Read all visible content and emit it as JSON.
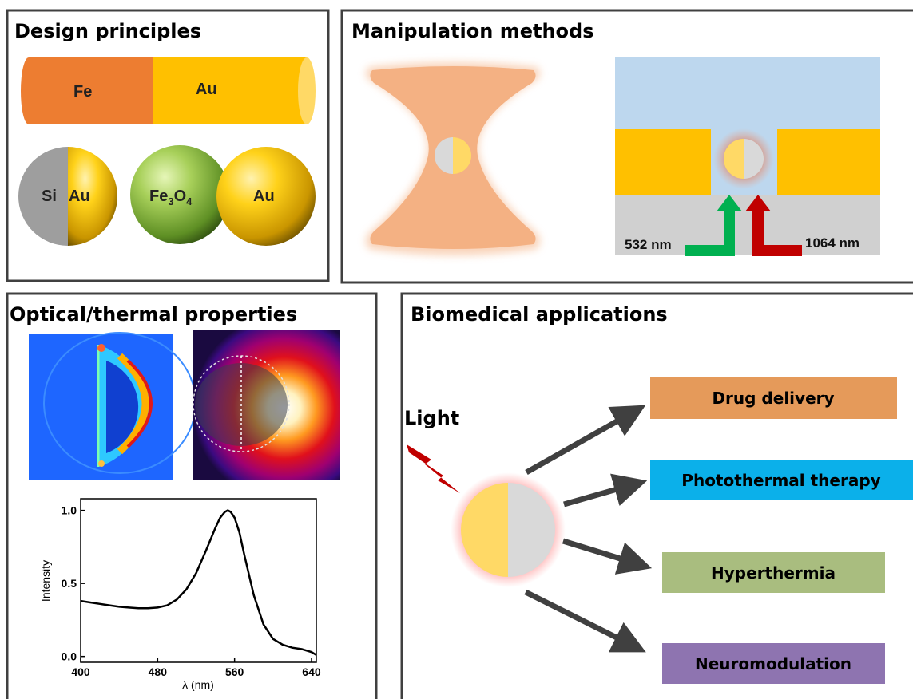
{
  "panels": {
    "design": {
      "title": "Design principles"
    },
    "manipulation": {
      "title": "Manipulation methods"
    },
    "optical": {
      "title": "Optical/thermal properties"
    },
    "biomedical": {
      "title": "Biomedical applications"
    }
  },
  "materials": {
    "fe": "Fe",
    "au_rod": "Au",
    "si": "Si",
    "au_janus": "Au",
    "fe3o4_main": "Fe",
    "fe3o4_sub3": "3",
    "fe3o4_o": "O",
    "fe3o4_sub4": "4",
    "au_sphere": "Au"
  },
  "lasers": {
    "green": "532 nm",
    "red": "1064 nm"
  },
  "light_label": "Light",
  "applications": [
    {
      "label": "Drug delivery",
      "color": "#E59A5A"
    },
    {
      "label": "Photothermal therapy",
      "color": "#0BB0EA"
    },
    {
      "label": "Hyperthermia",
      "color": "#A9BD7F"
    },
    {
      "label": "Neuromodulation",
      "color": "#8E74B0"
    }
  ],
  "colors": {
    "gold": "#FFC000",
    "iron": "#ED7D31",
    "silica": "#D9D9D9",
    "arrow": "#404040",
    "green_laser": "#00B050",
    "red_laser": "#C00000"
  },
  "chart_data": {
    "type": "line",
    "xlabel": "λ (nm)",
    "ylabel": "Intensity",
    "xlim": [
      400,
      645
    ],
    "ylim": [
      -0.04,
      1.08
    ],
    "xticks": [
      400,
      480,
      560,
      640
    ],
    "yticks": [
      0.0,
      0.5,
      1.0
    ],
    "ytick_labels": [
      "0.0",
      "0.5",
      "1.0"
    ],
    "series": [
      {
        "x": [
          400,
          410,
          420,
          430,
          440,
          450,
          460,
          470,
          480,
          490,
          500,
          510,
          520,
          530,
          540,
          545,
          550,
          553,
          556,
          560,
          565,
          570,
          580,
          590,
          600,
          610,
          620,
          630,
          640,
          645
        ],
        "y": [
          0.38,
          0.37,
          0.36,
          0.35,
          0.34,
          0.335,
          0.33,
          0.33,
          0.335,
          0.35,
          0.39,
          0.46,
          0.57,
          0.72,
          0.88,
          0.95,
          0.99,
          1.0,
          0.99,
          0.95,
          0.85,
          0.7,
          0.42,
          0.22,
          0.12,
          0.08,
          0.06,
          0.05,
          0.03,
          0.01
        ]
      }
    ]
  }
}
